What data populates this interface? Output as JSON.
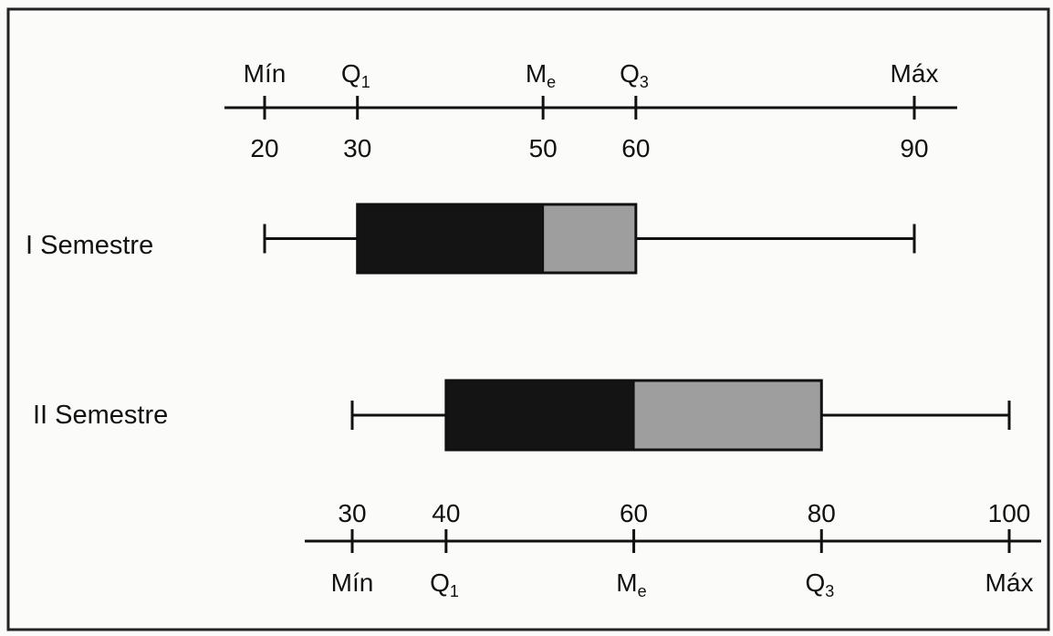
{
  "chart_data": {
    "type": "boxplot",
    "title": "",
    "colors": {
      "lower_box": "#141414",
      "upper_box": "#9e9e9e",
      "line": "#111111",
      "frame": "#222222"
    },
    "series": [
      {
        "name": "I Semestre",
        "min": 20,
        "q1": 30,
        "median": 50,
        "q3": 60,
        "max": 90
      },
      {
        "name": "II Semestre",
        "min": 30,
        "q1": 40,
        "median": 60,
        "q3": 80,
        "max": 100
      }
    ],
    "top_axis": {
      "ticks": [
        {
          "value": 20,
          "label": "20",
          "stat": "Mín",
          "sub": ""
        },
        {
          "value": 30,
          "label": "30",
          "stat": "Q",
          "sub": "1"
        },
        {
          "value": 50,
          "label": "50",
          "stat": "M",
          "sub": "e"
        },
        {
          "value": 60,
          "label": "60",
          "stat": "Q",
          "sub": "3"
        },
        {
          "value": 90,
          "label": "90",
          "stat": "Máx",
          "sub": ""
        }
      ]
    },
    "bottom_axis": {
      "ticks": [
        {
          "value": 30,
          "label": "30",
          "stat": "Mín",
          "sub": ""
        },
        {
          "value": 40,
          "label": "40",
          "stat": "Q",
          "sub": "1"
        },
        {
          "value": 60,
          "label": "60",
          "stat": "M",
          "sub": "e"
        },
        {
          "value": 80,
          "label": "80",
          "stat": "Q",
          "sub": "3"
        },
        {
          "value": 100,
          "label": "100",
          "stat": "Máx",
          "sub": ""
        }
      ]
    }
  }
}
